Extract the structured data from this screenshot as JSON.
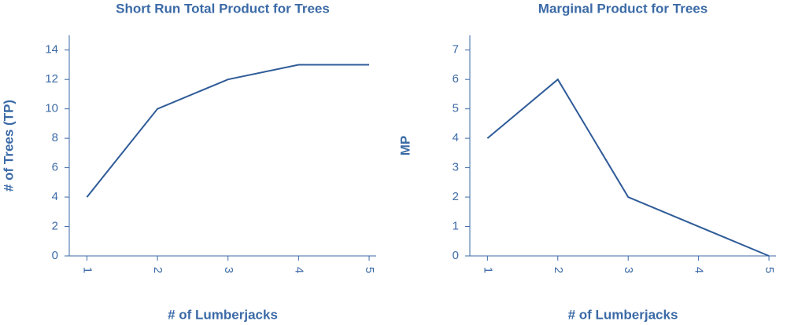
{
  "chart_data": [
    {
      "type": "line",
      "title": "Short Run Total Product for Trees",
      "x_label": "# of Lumberjacks",
      "y_label": "# of Trees (TP)",
      "x": [
        1,
        2,
        3,
        4,
        5
      ],
      "series": [
        {
          "name": "TP",
          "color": "#2f5b98",
          "values": [
            4,
            10,
            12,
            13,
            13
          ]
        }
      ],
      "xlim": [
        0.75,
        5.1
      ],
      "xticks": [
        1,
        2,
        3,
        4,
        5
      ],
      "ylim": [
        0,
        15
      ],
      "yticks": [
        0,
        2,
        4,
        6,
        8,
        10,
        12,
        14
      ]
    },
    {
      "type": "line",
      "title": "Marginal Product for Trees",
      "x_label": "# of Lumberjacks",
      "y_label": "MP",
      "x": [
        1,
        2,
        3,
        4,
        5
      ],
      "series": [
        {
          "name": "MP",
          "color": "#2f5b98",
          "values": [
            4,
            6,
            2,
            1,
            0
          ]
        }
      ],
      "xlim": [
        0.75,
        5.1
      ],
      "xticks": [
        1,
        2,
        3,
        4,
        5
      ],
      "ylim": [
        0,
        7.5
      ],
      "yticks": [
        0,
        1,
        2,
        3,
        4,
        5,
        6,
        7
      ]
    }
  ]
}
